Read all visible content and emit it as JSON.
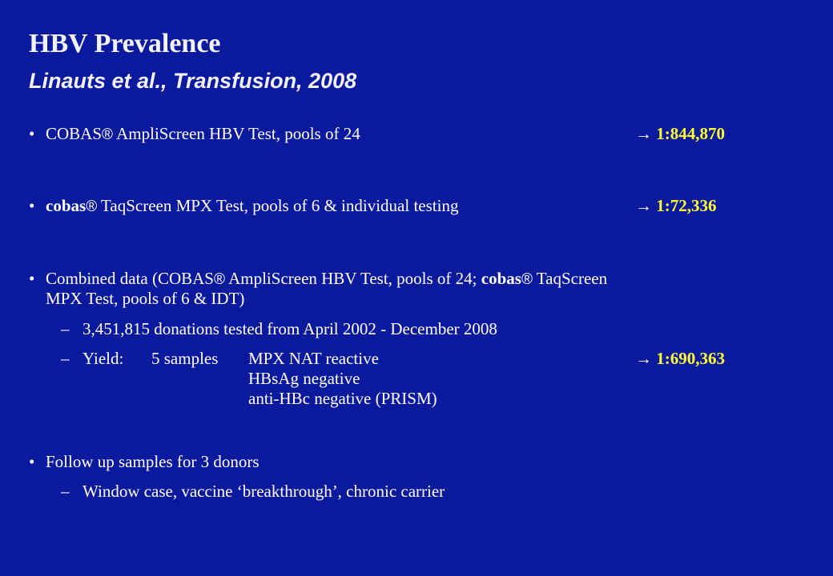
{
  "title": "HBV Prevalence",
  "subtitle": "Linauts et al., Transfusion, 2008",
  "bullet_symbol": "•",
  "dash_symbol": "–",
  "arrow_symbol": "→",
  "reg_symbol": "®",
  "colors": {
    "background": "#0b1a9c",
    "text": "#ffffff",
    "highlight": "#ffff33"
  },
  "b1": {
    "prefix": "COBAS",
    "rest": " AmpliScreen HBV Test, pools of 24",
    "result": "1:844,870"
  },
  "b2": {
    "prefix": "cobas",
    "rest": " TaqScreen MPX Test, pools of 6 & individual testing",
    "result": "1:72,336"
  },
  "b3": {
    "line1_a": "Combined data (COBAS",
    "line1_b": " AmpliScreen HBV Test, pools of 24; ",
    "line1_c": "cobas",
    "line1_d": " TaqScreen",
    "line2": "MPX Test, pools of 6 & IDT)",
    "sub1": "3,451,815 donations tested from April 2002 - December 2008",
    "sub2_label": "Yield:",
    "sub2_count": "5 samples",
    "sub2_r1": "MPX NAT reactive",
    "sub2_r2": "HBsAg negative",
    "sub2_r3": "anti-HBc negative (PRISM)",
    "result": "1:690,363"
  },
  "b4": {
    "text": "Follow up samples for 3 donors",
    "sub1": "Window case, vaccine ‘breakthrough’, chronic carrier"
  }
}
